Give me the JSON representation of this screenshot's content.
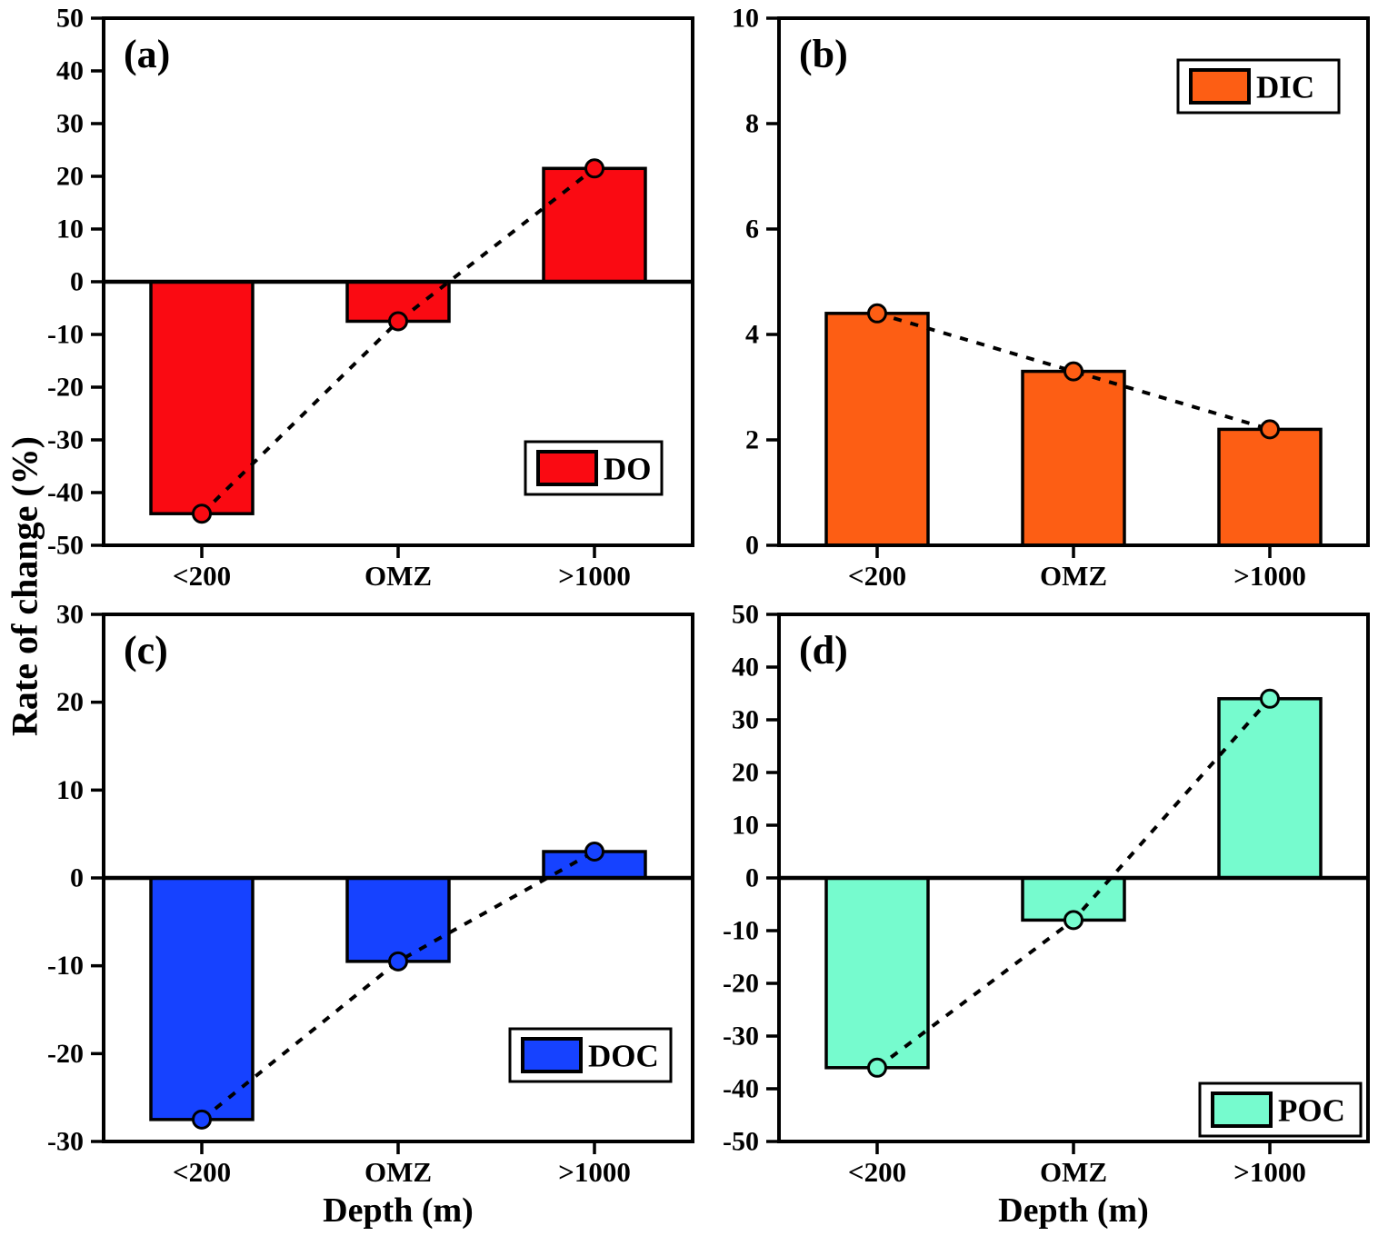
{
  "figure": {
    "ylabel": "Rate of change (%)",
    "xlabel": "Depth (m)",
    "background": "#FFFFFF",
    "axis_color": "#000000",
    "trend_line_color": "#000000"
  },
  "chart_data": [
    {
      "id": "a",
      "type": "bar",
      "panel_label": "(a)",
      "legend_label": "DO",
      "legend_position": "bottom-right",
      "bar_color": "#FA0A12",
      "categories": [
        "<200",
        "OMZ",
        ">1000"
      ],
      "values": [
        -44,
        -7.5,
        21.5
      ],
      "ylim": [
        -50,
        50
      ],
      "ytick_step": 10,
      "grid": false,
      "trend": {
        "style": "dashed",
        "markers": true
      },
      "show_xlabel": false
    },
    {
      "id": "b",
      "type": "bar",
      "panel_label": "(b)",
      "legend_label": "DIC",
      "legend_position": "top-right",
      "bar_color": "#FD5E14",
      "categories": [
        "<200",
        "OMZ",
        ">1000"
      ],
      "values": [
        4.4,
        3.3,
        2.2
      ],
      "ylim": [
        0,
        10
      ],
      "ytick_step": 2,
      "grid": false,
      "trend": {
        "style": "dashed",
        "markers": true
      },
      "show_xlabel": false
    },
    {
      "id": "c",
      "type": "bar",
      "panel_label": "(c)",
      "legend_label": "DOC",
      "legend_position": "bottom-right",
      "bar_color": "#1642FF",
      "categories": [
        "<200",
        "OMZ",
        ">1000"
      ],
      "values": [
        -27.5,
        -9.5,
        3
      ],
      "ylim": [
        -30,
        30
      ],
      "ytick_step": 10,
      "grid": false,
      "trend": {
        "style": "dashed",
        "markers": true
      },
      "show_xlabel": true
    },
    {
      "id": "d",
      "type": "bar",
      "panel_label": "(d)",
      "legend_label": "POC",
      "legend_position": "bottom-right",
      "bar_color": "#76FBCE",
      "categories": [
        "<200",
        "OMZ",
        ">1000"
      ],
      "values": [
        -36,
        -8,
        34
      ],
      "ylim": [
        -50,
        50
      ],
      "ytick_step": 10,
      "grid": false,
      "trend": {
        "style": "dashed",
        "markers": true
      },
      "show_xlabel": true
    }
  ]
}
